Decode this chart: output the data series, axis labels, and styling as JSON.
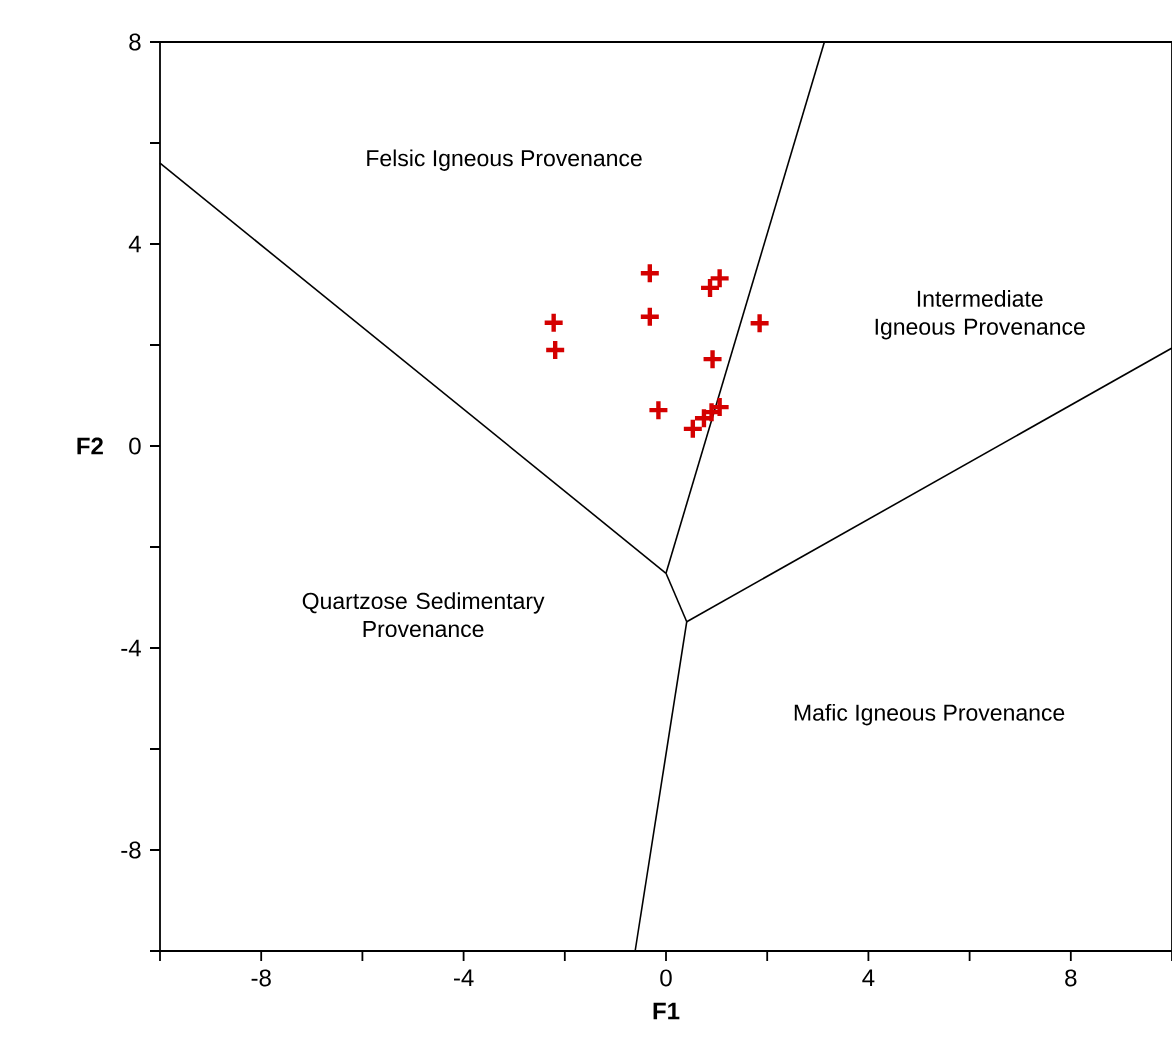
{
  "chart_data": {
    "type": "scatter",
    "xlabel": "F1",
    "ylabel": "F2",
    "xlim": [
      -10,
      10
    ],
    "ylim": [
      -10,
      8
    ],
    "xticks": [
      {
        "value": -10,
        "label": null
      },
      -8,
      {
        "value": -6,
        "label": null
      },
      -4,
      {
        "value": -2,
        "label": null
      },
      0,
      {
        "value": 2,
        "label": null
      },
      4,
      {
        "value": 6,
        "label": null
      },
      8,
      {
        "value": 10,
        "label": null
      }
    ],
    "yticks": [
      {
        "value": -10,
        "label": null
      },
      -8,
      {
        "value": -6,
        "label": null
      },
      -4,
      {
        "value": -2,
        "label": null
      },
      0,
      {
        "value": 2,
        "label": null
      },
      4,
      {
        "value": 6,
        "label": null
      },
      8
    ],
    "grid": false,
    "series": [
      {
        "marker": "cross",
        "color": "#d40000",
        "x": [
          -2.22,
          -2.19,
          -0.32,
          -0.32,
          0.87,
          1.06,
          1.85,
          0.92,
          -0.15,
          0.53,
          0.75,
          0.9,
          1.06
        ],
        "values": [
          2.44,
          1.9,
          3.42,
          2.56,
          3.13,
          3.32,
          2.43,
          1.72,
          0.71,
          0.34,
          0.55,
          0.67,
          0.77
        ]
      },
      {
        "type": "line",
        "marker": "none",
        "color": "#000000",
        "x": [
          -10,
          0
        ],
        "values": [
          5.6,
          -2.52
        ]
      },
      {
        "type": "line",
        "marker": "none",
        "color": "#000000",
        "x": [
          0,
          3.13
        ],
        "values": [
          -2.52,
          8
        ]
      },
      {
        "type": "line",
        "marker": "none",
        "color": "#000000",
        "x": [
          0,
          0.41
        ],
        "values": [
          -2.52,
          -3.48
        ]
      },
      {
        "type": "line",
        "marker": "none",
        "color": "#000000",
        "x": [
          0.41,
          10
        ],
        "values": [
          -3.48,
          1.94
        ]
      },
      {
        "type": "line",
        "marker": "none",
        "color": "#000000",
        "x": [
          0.41,
          -0.61
        ],
        "values": [
          -3.48,
          -10
        ]
      }
    ],
    "annotations": [
      "Felsic Igneous Provenance",
      "Intermediate Igneous Provenance",
      "Quartzose Sedimentary Provenance",
      "Mafic Igneous Provenance"
    ]
  }
}
